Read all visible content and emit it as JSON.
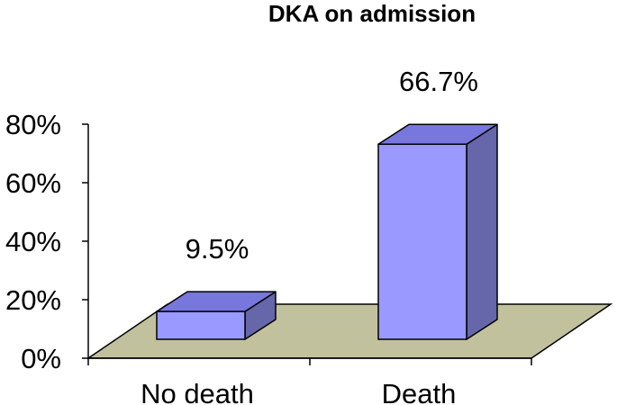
{
  "chart_data": {
    "type": "bar",
    "title": "DKA on admission",
    "categories": [
      "No death",
      "Death"
    ],
    "values": [
      9.5,
      66.7
    ],
    "data_labels": [
      "9.5%",
      "66.7%"
    ],
    "ylim": [
      0,
      80
    ],
    "y_ticks": [
      "0%",
      "20%",
      "40%",
      "60%",
      "80%"
    ],
    "xlabel": "",
    "ylabel": "",
    "grid": false,
    "legend": "none",
    "style": "3d",
    "colors": {
      "bar_front": "#9999ff",
      "bar_top": "#7777dd",
      "bar_side": "#6666aa",
      "floor": "#c2c19e",
      "axis": "#000000"
    }
  }
}
